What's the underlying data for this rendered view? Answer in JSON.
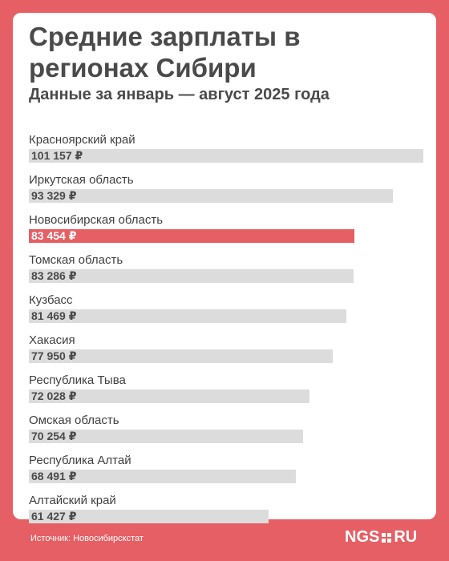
{
  "title": "Средние зарплаты в регионах Сибири",
  "subtitle": "Данные за январь — август 2025 года",
  "source": "Источник: Новосибирскстат",
  "logo": {
    "left": "NGS",
    "right": "RU"
  },
  "colors": {
    "background": "#e65f64",
    "bar": "#dcdcdc",
    "highlight": "#e65f64",
    "text": "#4a4a4a"
  },
  "chart_data": {
    "type": "bar",
    "orientation": "horizontal",
    "title": "Средние зарплаты в регионах Сибири",
    "subtitle": "Данные за январь — август 2025 года",
    "unit": "₽",
    "xlim": [
      0,
      101157
    ],
    "grid": false,
    "highlighted": "Новосибирская область",
    "categories": [
      "Красноярский край",
      "Иркутская область",
      "Новосибирская область",
      "Томская область",
      "Кузбасс",
      "Хакасия",
      "Республика Тыва",
      "Омская область",
      "Республика Алтай",
      "Алтайский край"
    ],
    "values": [
      101157,
      93329,
      83454,
      83286,
      81469,
      77950,
      72028,
      70254,
      68491,
      61427
    ],
    "value_labels": [
      "101 157 ₽",
      "93 329 ₽",
      "83 454 ₽",
      "83 286 ₽",
      "81 469 ₽",
      "77 950 ₽",
      "72 028 ₽",
      "70 254 ₽",
      "68 491 ₽",
      "61 427 ₽"
    ]
  }
}
